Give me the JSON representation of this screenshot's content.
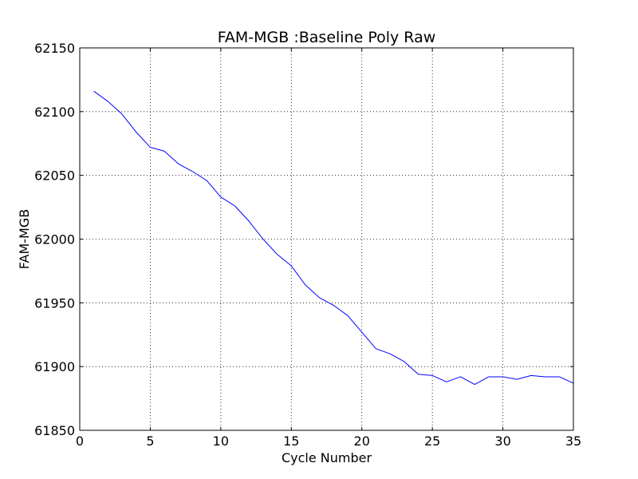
{
  "chart_data": {
    "type": "line",
    "title": "FAM-MGB :Baseline Poly Raw",
    "xlabel": "Cycle Number",
    "ylabel": "FAM-MGB",
    "xlim": [
      0,
      35
    ],
    "ylim": [
      61850,
      62150
    ],
    "xticks": [
      0,
      5,
      10,
      15,
      20,
      25,
      30,
      35
    ],
    "yticks": [
      61850,
      61900,
      61950,
      62000,
      62050,
      62100,
      62150
    ],
    "grid": true,
    "series": [
      {
        "color": "#0000ff",
        "x": [
          1,
          2,
          3,
          4,
          5,
          6,
          7,
          8,
          9,
          10,
          11,
          12,
          13,
          14,
          15,
          16,
          17,
          18,
          19,
          20,
          21,
          22,
          23,
          24,
          25,
          26,
          27,
          28,
          29,
          30,
          31,
          32,
          33,
          34,
          35
        ],
        "y": [
          62116,
          62108,
          62098,
          62084,
          62072,
          62069,
          62059,
          62053,
          62046,
          62033,
          62026,
          62014,
          62000,
          61988,
          61979,
          61964,
          61954,
          61948,
          61940,
          61927,
          61914,
          61910,
          61904,
          61894,
          61893,
          61888,
          61892,
          61886,
          61892,
          61892,
          61890,
          61893,
          61892,
          61892,
          61887
        ]
      }
    ]
  }
}
